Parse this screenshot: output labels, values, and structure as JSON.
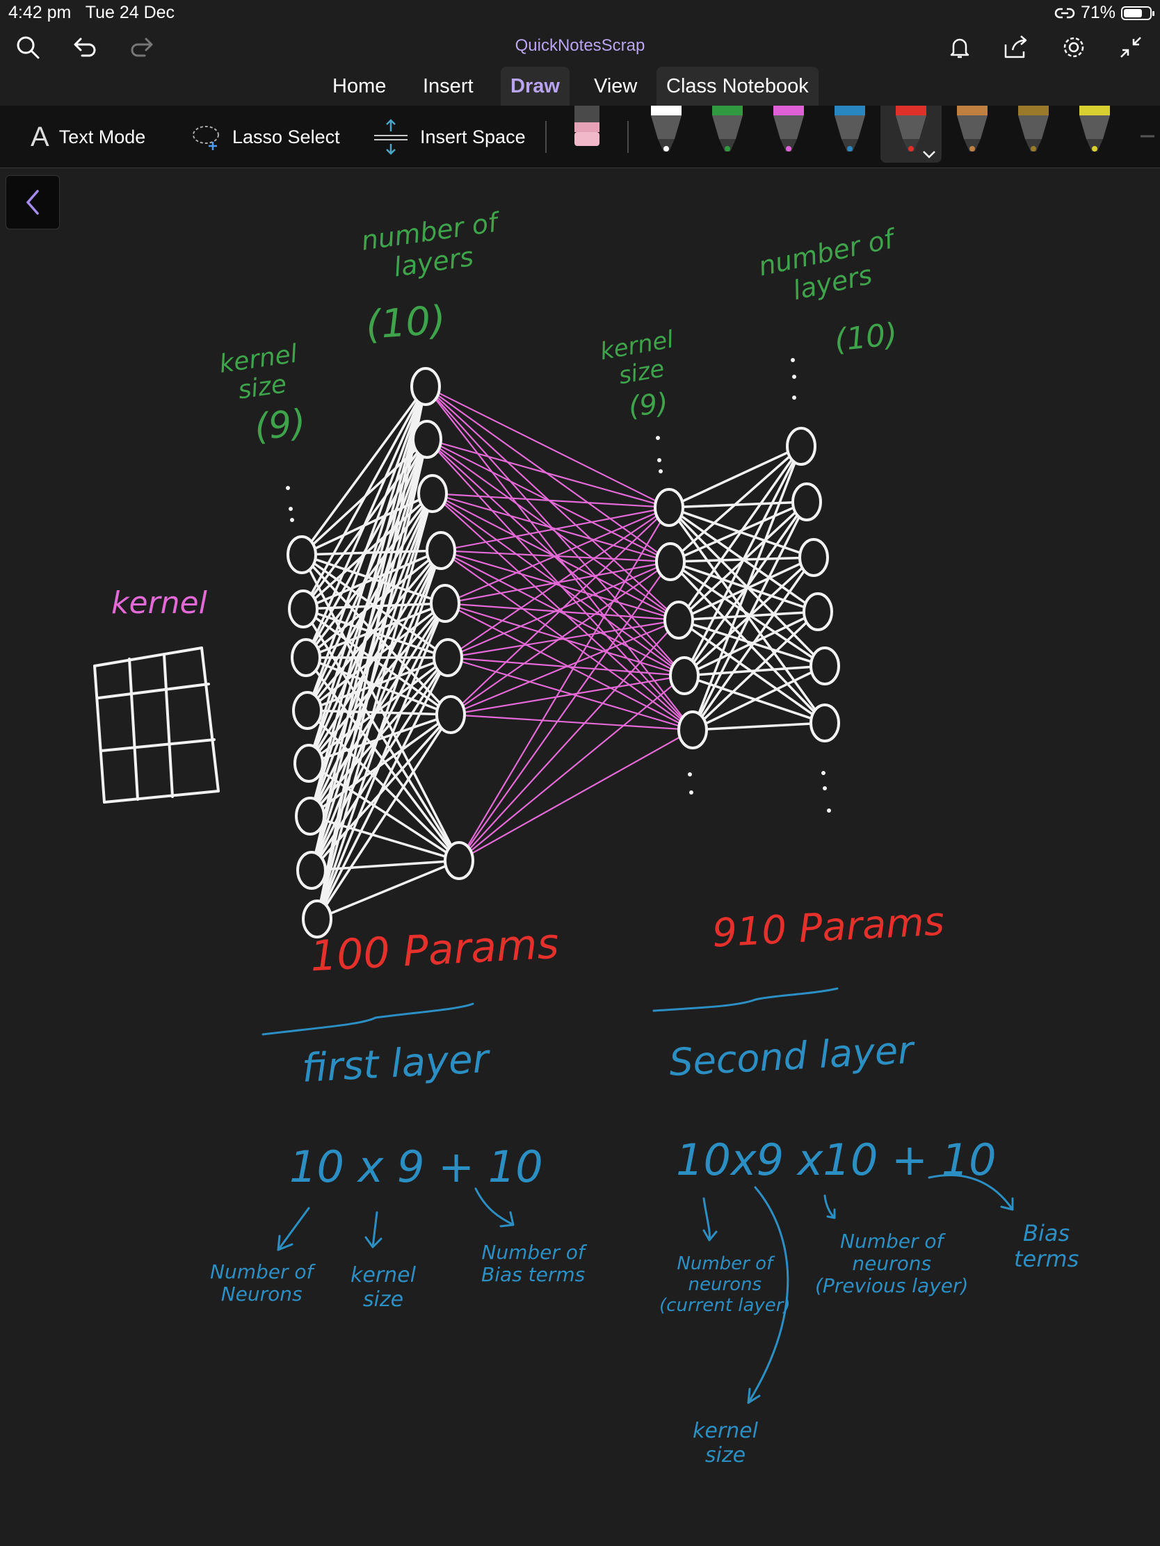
{
  "status": {
    "time": "4:42 pm",
    "date": "Tue 24 Dec",
    "battery": "71%",
    "battery_level": 0.71
  },
  "app": {
    "title": "QuickNotesScrap"
  },
  "tabs": [
    {
      "label": "Home"
    },
    {
      "label": "Insert"
    },
    {
      "label": "Draw",
      "active": true
    },
    {
      "label": "View"
    },
    {
      "label": "Class Notebook"
    }
  ],
  "toolbar": {
    "text_mode": "Text Mode",
    "lasso_select": "Lasso Select",
    "insert_space": "Insert Space",
    "pens": [
      {
        "name": "white-pen",
        "color": "#ffffff"
      },
      {
        "name": "green-pen",
        "color": "#2f9a3f"
      },
      {
        "name": "pink-pen",
        "color": "#e060d8"
      },
      {
        "name": "blue-pen",
        "color": "#2a86c0"
      },
      {
        "name": "red-pen",
        "color": "#e0302a",
        "selected": true
      },
      {
        "name": "rainbow-pen",
        "color": "#c08040"
      },
      {
        "name": "gold-pen",
        "color": "#9a7a2a"
      },
      {
        "name": "yellow-highlighter",
        "color": "#d8d030"
      }
    ]
  },
  "notes": {
    "layers_left": "number of\nlayers",
    "layers_left_value": "(10)",
    "kernel_size_left": "kernel\nsize",
    "kernel_size_left_value": "(9)",
    "layers_right": "number of\nlayers",
    "layers_right_value": "(10)",
    "kernel_size_right": "kernel\nsize",
    "kernel_size_right_value": "(9)",
    "kernel": "kernel",
    "params_first": "100 Params",
    "params_second": "910 Params",
    "first_layer": "first layer",
    "second_layer": "Second layer",
    "formula_first": "10 x 9 + 10",
    "formula_second": "10x9 x10 + 10",
    "first_neurons": "Number of\nNeurons",
    "first_kernel": "kernel\nsize",
    "first_bias": "Number of\nBias terms",
    "second_neurons_current": "Number of\nneurons\n(current layer)",
    "second_neurons_previous": "Number of\nneurons\n(Previous layer)",
    "second_bias": "Bias\nterms",
    "second_kernel": "kernel\nsize"
  }
}
